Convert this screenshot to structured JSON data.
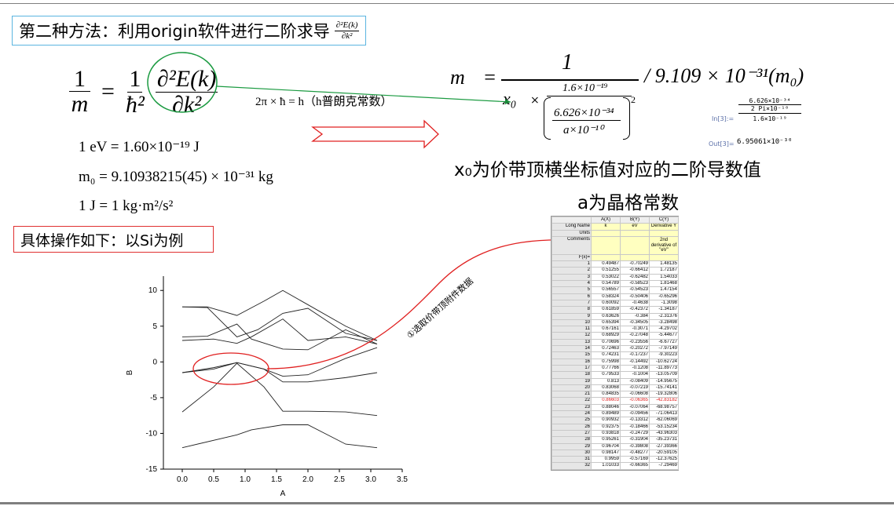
{
  "title": {
    "text": "第二种方法：利用origin软件进行二阶求导",
    "frac_num": "∂²E(k)",
    "frac_den": "∂k²"
  },
  "equation_left": {
    "lhs_num": "1",
    "lhs_den": "m",
    "eq": "=",
    "rhs_num": "1",
    "rhs_den": "ħ²",
    "d_num": "∂²E(k)",
    "d_den": "∂k²"
  },
  "planck_note": "2π × ħ = h（h普朗克常数）",
  "constants": [
    "1 eV = 1.60×10⁻¹⁹ J",
    "m₀ = 9.10938215(45) × 10⁻³¹ kg",
    "1 J = 1 kg·m²/s²"
  ],
  "operation_label": "具体操作如下：以Si为例",
  "equation_right": {
    "lhs": "m",
    "eq": "=",
    "num": "1",
    "x0": "x₀",
    "times": "×",
    "inner_num": "1.6×10⁻¹⁹",
    "paren_num": "6.626×10⁻³⁴",
    "paren_den": "a×10⁻¹⁰",
    "sq": "2",
    "tail": "/ 9.109 × 10⁻³¹(m₀)"
  },
  "mathematica": {
    "in_label": "In[3]:=",
    "in_num": "6.626×10⁻³⁴",
    "in_den_inner": "2 Pi×10⁻¹⁰",
    "in_den": "1.6×10⁻¹⁹",
    "out_label": "Out[3]=",
    "out_value": "6.95061×10⁻³⁰"
  },
  "note_x0": "x₀为价带顶横坐标值对应的二阶导数值",
  "note_a": "a为晶格常数",
  "arrow_label": "①选取价带顶附件数据",
  "chart_data": {
    "type": "line",
    "xlabel": "A",
    "ylabel": "B",
    "xlim": [
      -0.3,
      3.5
    ],
    "ylim": [
      -15,
      12
    ],
    "xticks": [
      "0.0",
      "0.5",
      "1.0",
      "1.5",
      "2.0",
      "2.5",
      "3.0",
      "3.5"
    ],
    "yticks": [
      "10",
      "5",
      "0",
      "-5",
      "-10",
      "-15"
    ],
    "series": [
      {
        "x": [
          0,
          0.87,
          1.1,
          1.6,
          2.0,
          2.6,
          3.1
        ],
        "y": [
          -12,
          -10.2,
          -9.5,
          -8.8,
          -8.8,
          -11.5,
          -12
        ]
      },
      {
        "x": [
          0,
          0.5,
          0.87,
          1.3,
          1.6,
          2.0,
          2.6,
          3.1
        ],
        "y": [
          -7,
          -3.5,
          -0.2,
          -3.5,
          -6.9,
          -6.9,
          -7,
          -7.5
        ]
      },
      {
        "x": [
          0,
          0.5,
          0.87,
          1.3,
          1.6,
          2.0,
          2.6,
          3.1
        ],
        "y": [
          -1.5,
          -1,
          -0.1,
          -1,
          -2.8,
          -2.8,
          -2.2,
          -1.5
        ]
      },
      {
        "x": [
          0,
          0.5,
          0.87,
          1.3,
          1.6,
          2.0,
          2.6,
          3.1
        ],
        "y": [
          -1.5,
          -0.8,
          -0.1,
          -1,
          -2,
          -1.8,
          0.5,
          2
        ]
      },
      {
        "x": [
          0,
          0.5,
          0.87,
          1.1,
          1.6,
          2.0,
          2.6,
          3.1
        ],
        "y": [
          3,
          3.2,
          2.6,
          3.5,
          6,
          3,
          3.5,
          2.5
        ]
      },
      {
        "x": [
          0,
          0.4,
          0.87,
          1.1,
          1.6,
          2.0,
          2.6,
          3.1
        ],
        "y": [
          3.5,
          3.6,
          5.3,
          3.2,
          1.8,
          1.7,
          4.5,
          2.5
        ]
      },
      {
        "x": [
          0,
          0.4,
          0.87,
          1.3,
          1.6,
          2.0,
          2.6,
          3.1
        ],
        "y": [
          7.7,
          7.7,
          6.5,
          8.5,
          10,
          8,
          5,
          3
        ]
      },
      {
        "x": [
          0,
          0.4,
          0.87,
          1.2,
          1.6,
          2.0,
          2.6,
          3.1
        ],
        "y": [
          7.7,
          7.6,
          3.5,
          4.5,
          6.8,
          7.5,
          4,
          3
        ]
      }
    ]
  },
  "sheet": {
    "cols": [
      "A(X)",
      "B(Y)",
      "C(Y)"
    ],
    "long_name": [
      "Long Name",
      "k",
      "eV",
      "Derivative Y"
    ],
    "units": "Units",
    "comments": [
      "Comments",
      "2nd derivative of \"eV\""
    ],
    "fx": "F(x)=",
    "rows": [
      [
        "1",
        "0.49487",
        "-0.70249",
        "1.48135"
      ],
      [
        "2",
        "0.51255",
        "-0.66412",
        "1.72187"
      ],
      [
        "3",
        "0.53022",
        "-0.62482",
        "1.54033"
      ],
      [
        "4",
        "0.54789",
        "-0.58523",
        "1.81468"
      ],
      [
        "5",
        "0.56557",
        "-0.54523",
        "1.47154"
      ],
      [
        "6",
        "0.58324",
        "-0.50406",
        "-0.65296"
      ],
      [
        "7",
        "0.60092",
        "-0.4638",
        "-1.3098"
      ],
      [
        "8",
        "0.61859",
        "-0.42372",
        "-1.34187"
      ],
      [
        "9",
        "0.63626",
        "-0.384",
        "-2.31376"
      ],
      [
        "10",
        "0.65394",
        "-0.34505",
        "-3.28498"
      ],
      [
        "11",
        "0.67161",
        "-0.3071",
        "-4.29702"
      ],
      [
        "12",
        "0.68929",
        "-0.27048",
        "-5.44677"
      ],
      [
        "13",
        "0.70696",
        "-0.23556",
        "-6.67727"
      ],
      [
        "14",
        "0.72463",
        "-0.20272",
        "-7.97149"
      ],
      [
        "15",
        "0.74231",
        "-0.17237",
        "-9.30223"
      ],
      [
        "16",
        "0.75998",
        "-0.14492",
        "-10.62724"
      ],
      [
        "17",
        "0.77766",
        "-0.1208",
        "-11.89773"
      ],
      [
        "18",
        "0.79533",
        "-0.1004",
        "-13.05709"
      ],
      [
        "19",
        "0.813",
        "-0.08409",
        "-14.95675"
      ],
      [
        "20",
        "0.83068",
        "-0.07219",
        "-15.74141"
      ],
      [
        "21",
        "0.84835",
        "-0.06608",
        "-19.32806"
      ],
      [
        "22",
        "0.86603",
        "-0.06365",
        "-42.83182"
      ],
      [
        "23",
        "0.88046",
        "-0.07064",
        "-68.98757"
      ],
      [
        "24",
        "0.89489",
        "-0.09456",
        "-71.06413"
      ],
      [
        "25",
        "0.90932",
        "-0.13312",
        "-62.06069"
      ],
      [
        "26",
        "0.92375",
        "-0.18466",
        "-53.15234"
      ],
      [
        "27",
        "0.93818",
        "-0.24729",
        "-43.96303"
      ],
      [
        "28",
        "0.95261",
        "-0.31904",
        "-35.23731"
      ],
      [
        "29",
        "0.96704",
        "-0.39808",
        "-27.39366"
      ],
      [
        "30",
        "0.98147",
        "-0.48277",
        "-20.59105"
      ],
      [
        "31",
        "0.9959",
        "-0.57169",
        "-12.37625"
      ],
      [
        "32",
        "1.01033",
        "-0.66365",
        "-7.29469"
      ]
    ],
    "highlight_row": "22",
    "colors": {
      "highlight": "#e02020",
      "meta_bg": "#ffffc0"
    }
  }
}
